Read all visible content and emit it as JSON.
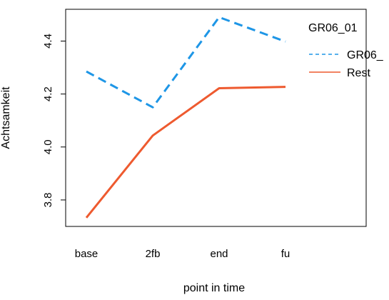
{
  "chart_data": {
    "type": "line",
    "title": "",
    "xlabel": "point in time",
    "ylabel": "Achtsamkeit",
    "categories": [
      "base",
      "2fb",
      "end",
      "fu"
    ],
    "ylim": [
      3.7,
      4.52
    ],
    "yticks": [
      "3.8",
      "4.0",
      "4.2",
      "4.4"
    ],
    "grid": false,
    "legend": {
      "title": "GR06_01",
      "placement": "top-right",
      "entries": [
        "GR06_",
        "Rest"
      ]
    },
    "series": [
      {
        "name": "GR06_",
        "values": [
          4.285,
          4.15,
          4.49,
          4.398
        ],
        "color": "#1E96E6",
        "dash": "dashed"
      },
      {
        "name": "Rest",
        "values": [
          3.733,
          4.043,
          4.222,
          4.227
        ],
        "color": "#EE5A2F",
        "dash": "solid"
      }
    ]
  }
}
